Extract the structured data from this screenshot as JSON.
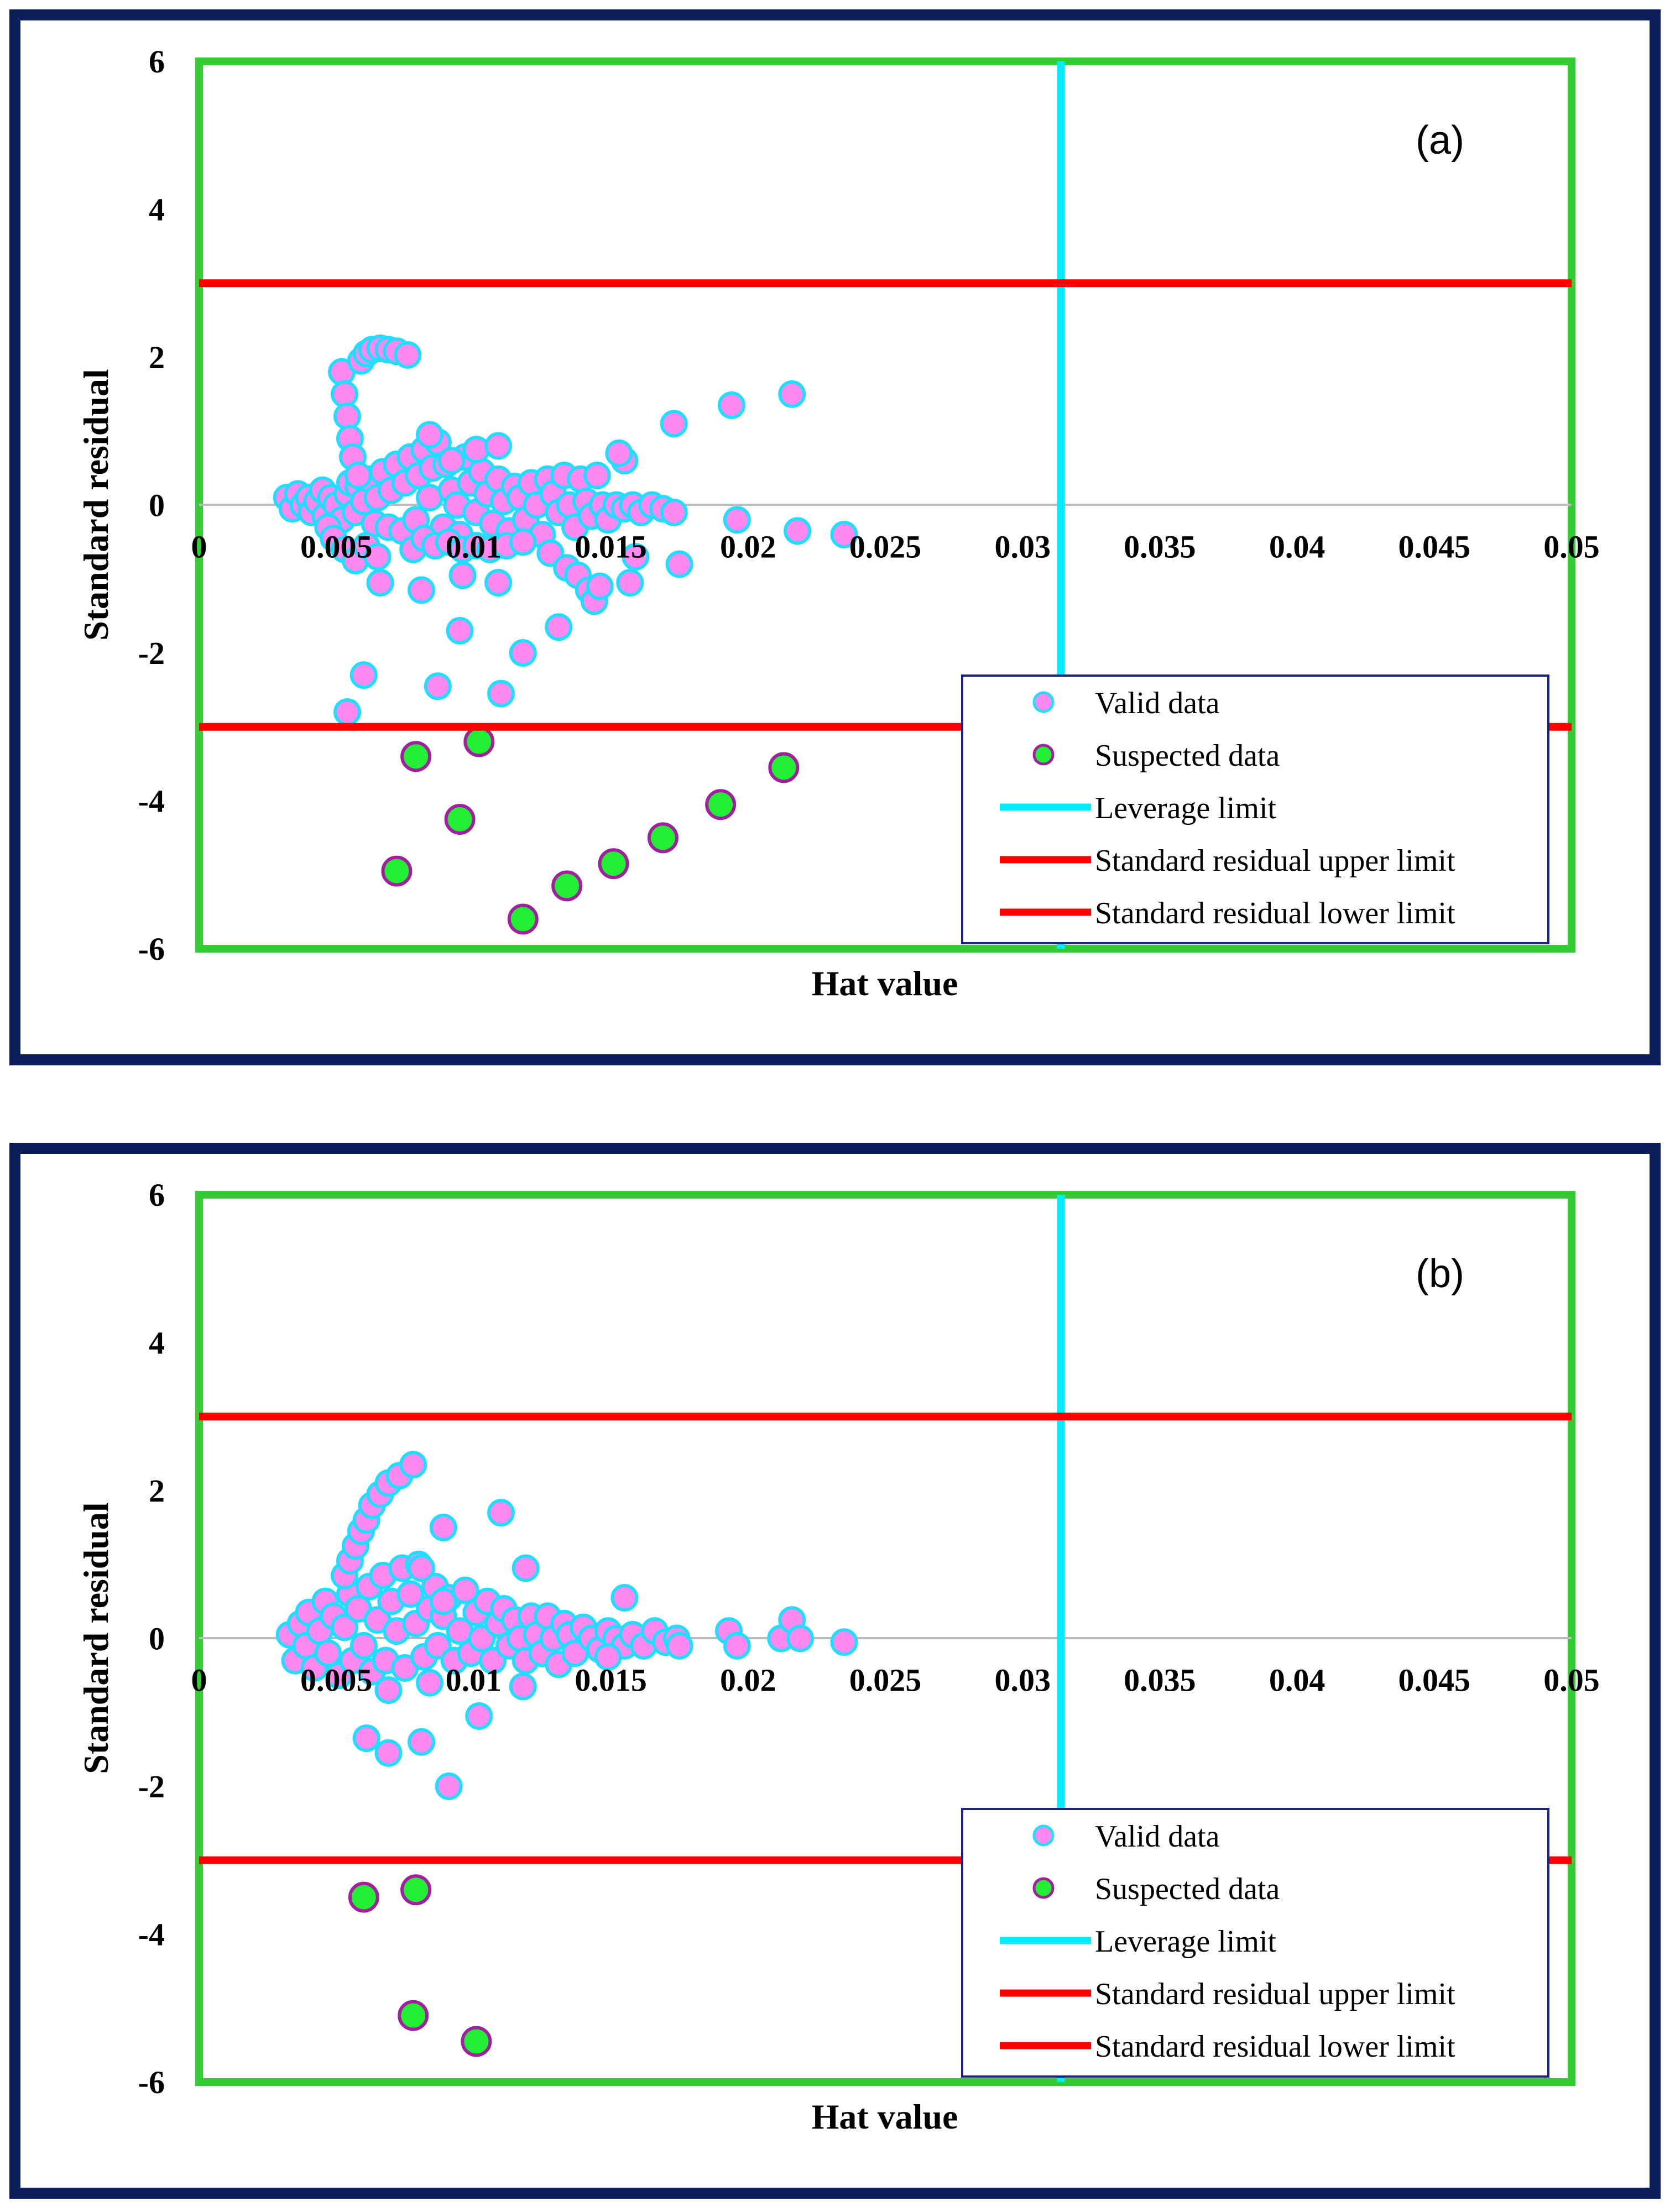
{
  "colors": {
    "frame": "#0b1d59",
    "plot_border": "#33cc33",
    "valid_fill": "#ff88f0",
    "valid_edge": "#22ddff",
    "suspect_fill": "#22ee33",
    "suspect_edge": "#a020a0",
    "leverage": "#00eeff",
    "residual_limit": "#ff0000",
    "zero_line": "#bbbbbb"
  },
  "legend": {
    "valid": "Valid data",
    "suspected": "Suspected data",
    "leverage": "Leverage limit",
    "upper": "Standard residual upper limit",
    "lower": "Standard residual lower limit"
  },
  "chart_data": [
    {
      "type": "scatter",
      "panel_label": "(a)",
      "xlabel": "Hat value",
      "ylabel": "Standard residual",
      "xlim": [
        0,
        0.05
      ],
      "ylim": [
        -6,
        6
      ],
      "xticks": [
        "0",
        "0.005",
        "0.01",
        "0.015",
        "0.02",
        "0.025",
        "0.03",
        "0.035",
        "0.04",
        "0.045",
        "0.05"
      ],
      "yticks": [
        "6",
        "4",
        "2",
        "0",
        "-2",
        "-4",
        "-6"
      ],
      "leverage_limit": 0.0314,
      "upper_limit": 3,
      "lower_limit": -3,
      "series": [
        {
          "name": "Valid data",
          "points": [
            [
              0.0032,
              0.1
            ],
            [
              0.0034,
              -0.05
            ],
            [
              0.0036,
              0.15
            ],
            [
              0.0038,
              0.0
            ],
            [
              0.004,
              0.1
            ],
            [
              0.0041,
              -0.1
            ],
            [
              0.0043,
              0.05
            ],
            [
              0.0045,
              0.2
            ],
            [
              0.0046,
              -0.15
            ],
            [
              0.0048,
              0.1
            ],
            [
              0.005,
              0.0
            ],
            [
              0.0052,
              -0.2
            ],
            [
              0.0054,
              0.15
            ],
            [
              0.0055,
              0.3
            ],
            [
              0.0057,
              -0.1
            ],
            [
              0.0058,
              0.25
            ],
            [
              0.006,
              0.05
            ],
            [
              0.0062,
              0.35
            ],
            [
              0.0064,
              -0.25
            ],
            [
              0.0065,
              0.1
            ],
            [
              0.0067,
              0.45
            ],
            [
              0.0069,
              -0.3
            ],
            [
              0.007,
              0.2
            ],
            [
              0.0072,
              0.55
            ],
            [
              0.0074,
              -0.35
            ],
            [
              0.0075,
              0.3
            ],
            [
              0.0077,
              0.65
            ],
            [
              0.0079,
              -0.2
            ],
            [
              0.008,
              0.4
            ],
            [
              0.0082,
              0.75
            ],
            [
              0.0084,
              0.1
            ],
            [
              0.0085,
              0.5
            ],
            [
              0.0087,
              0.85
            ],
            [
              0.0089,
              -0.3
            ],
            [
              0.009,
              0.55
            ],
            [
              0.0092,
              0.2
            ],
            [
              0.0094,
              0.0
            ],
            [
              0.0095,
              -0.4
            ],
            [
              0.0097,
              0.65
            ],
            [
              0.0099,
              0.3
            ],
            [
              0.0101,
              -0.1
            ],
            [
              0.0103,
              0.45
            ],
            [
              0.0105,
              0.15
            ],
            [
              0.0107,
              -0.25
            ],
            [
              0.0109,
              0.35
            ],
            [
              0.0111,
              0.05
            ],
            [
              0.0113,
              -0.35
            ],
            [
              0.0115,
              0.25
            ],
            [
              0.0117,
              0.1
            ],
            [
              0.0119,
              -0.2
            ],
            [
              0.0121,
              0.3
            ],
            [
              0.0123,
              0.0
            ],
            [
              0.0125,
              -0.4
            ],
            [
              0.0127,
              0.35
            ],
            [
              0.0129,
              0.15
            ],
            [
              0.0131,
              -0.1
            ],
            [
              0.0133,
              0.4
            ],
            [
              0.0135,
              0.0
            ],
            [
              0.0137,
              -0.3
            ],
            [
              0.0139,
              0.35
            ],
            [
              0.0141,
              0.05
            ],
            [
              0.0143,
              -0.15
            ],
            [
              0.0145,
              0.4
            ],
            [
              0.0147,
              0.0
            ],
            [
              0.0149,
              -0.2
            ],
            [
              0.0152,
              0.0
            ],
            [
              0.0155,
              -0.05
            ],
            [
              0.0158,
              0.0
            ],
            [
              0.0161,
              -0.1
            ],
            [
              0.0165,
              0.0
            ],
            [
              0.0169,
              -0.05
            ],
            [
              0.0173,
              -0.1
            ],
            [
              0.0052,
              1.8
            ],
            [
              0.0053,
              1.5
            ],
            [
              0.0054,
              1.2
            ],
            [
              0.0055,
              0.9
            ],
            [
              0.0056,
              0.65
            ],
            [
              0.0058,
              0.4
            ],
            [
              0.0059,
              1.95
            ],
            [
              0.0061,
              2.05
            ],
            [
              0.0063,
              2.1
            ],
            [
              0.0066,
              2.12
            ],
            [
              0.0069,
              2.1
            ],
            [
              0.0072,
              2.08
            ],
            [
              0.0076,
              2.03
            ],
            [
              0.0047,
              -0.3
            ],
            [
              0.0049,
              -0.45
            ],
            [
              0.0053,
              -0.6
            ],
            [
              0.0057,
              -0.75
            ],
            [
              0.0061,
              -0.55
            ],
            [
              0.0065,
              -0.7
            ],
            [
              0.0078,
              -0.6
            ],
            [
              0.0082,
              -0.45
            ],
            [
              0.0086,
              -0.55
            ],
            [
              0.0091,
              -0.5
            ],
            [
              0.0096,
              -0.6
            ],
            [
              0.0101,
              -0.55
            ],
            [
              0.0106,
              -0.6
            ],
            [
              0.0112,
              -0.55
            ],
            [
              0.0118,
              -0.5
            ],
            [
              0.0128,
              -0.65
            ],
            [
              0.0134,
              -0.85
            ],
            [
              0.0138,
              -0.95
            ],
            [
              0.0142,
              -1.15
            ],
            [
              0.0144,
              -1.3
            ],
            [
              0.0146,
              -1.1
            ],
            [
              0.0159,
              -0.7
            ],
            [
              0.0175,
              -0.8
            ],
            [
              0.0157,
              -1.05
            ],
            [
              0.0066,
              -1.05
            ],
            [
              0.0081,
              -1.15
            ],
            [
              0.0096,
              -0.95
            ],
            [
              0.0109,
              -1.05
            ],
            [
              0.0155,
              0.6
            ],
            [
              0.0153,
              0.7
            ],
            [
              0.0173,
              1.1
            ],
            [
              0.0194,
              1.35
            ],
            [
              0.0216,
              1.5
            ],
            [
              0.0196,
              -0.2
            ],
            [
              0.0218,
              -0.35
            ],
            [
              0.0235,
              -0.4
            ],
            [
              0.0095,
              -1.7
            ],
            [
              0.0118,
              -2.0
            ],
            [
              0.0131,
              -1.65
            ],
            [
              0.006,
              -2.3
            ],
            [
              0.0087,
              -2.45
            ],
            [
              0.011,
              -2.55
            ],
            [
              0.0054,
              -2.8
            ],
            [
              0.0084,
              0.95
            ],
            [
              0.0092,
              0.6
            ],
            [
              0.0101,
              0.75
            ],
            [
              0.0109,
              0.8
            ]
          ]
        },
        {
          "name": "Suspected data",
          "points": [
            [
              0.0079,
              -3.4
            ],
            [
              0.0102,
              -3.2
            ],
            [
              0.0095,
              -4.25
            ],
            [
              0.0072,
              -4.95
            ],
            [
              0.0118,
              -5.6
            ],
            [
              0.0134,
              -5.15
            ],
            [
              0.0151,
              -4.85
            ],
            [
              0.0169,
              -4.5
            ],
            [
              0.019,
              -4.05
            ],
            [
              0.0213,
              -3.55
            ]
          ]
        }
      ]
    },
    {
      "type": "scatter",
      "panel_label": "(b)",
      "xlabel": "Hat value",
      "ylabel": "Standard residual",
      "xlim": [
        0,
        0.05
      ],
      "ylim": [
        -6,
        6
      ],
      "xticks": [
        "0",
        "0.005",
        "0.01",
        "0.015",
        "0.02",
        "0.025",
        "0.03",
        "0.035",
        "0.04",
        "0.045",
        "0.05"
      ],
      "yticks": [
        "6",
        "4",
        "2",
        "0",
        "-2",
        "-4",
        "-6"
      ],
      "leverage_limit": 0.0314,
      "upper_limit": 3,
      "lower_limit": -3,
      "series": [
        {
          "name": "Valid data",
          "points": [
            [
              0.0033,
              0.05
            ],
            [
              0.0035,
              -0.3
            ],
            [
              0.0037,
              0.2
            ],
            [
              0.0039,
              -0.1
            ],
            [
              0.004,
              0.35
            ],
            [
              0.0042,
              -0.4
            ],
            [
              0.0044,
              0.1
            ],
            [
              0.0046,
              0.5
            ],
            [
              0.0047,
              -0.2
            ],
            [
              0.0049,
              0.3
            ],
            [
              0.0051,
              -0.5
            ],
            [
              0.0053,
              0.15
            ],
            [
              0.0055,
              0.6
            ],
            [
              0.0056,
              -0.3
            ],
            [
              0.0058,
              0.4
            ],
            [
              0.006,
              -0.1
            ],
            [
              0.0062,
              0.7
            ],
            [
              0.0063,
              -0.45
            ],
            [
              0.0065,
              0.25
            ],
            [
              0.0067,
              0.85
            ],
            [
              0.0068,
              -0.3
            ],
            [
              0.007,
              0.5
            ],
            [
              0.0072,
              0.1
            ],
            [
              0.0074,
              0.95
            ],
            [
              0.0075,
              -0.4
            ],
            [
              0.0077,
              0.6
            ],
            [
              0.0079,
              0.2
            ],
            [
              0.008,
              1.0
            ],
            [
              0.0082,
              -0.25
            ],
            [
              0.0084,
              0.4
            ],
            [
              0.0086,
              0.7
            ],
            [
              0.0087,
              -0.1
            ],
            [
              0.0089,
              0.3
            ],
            [
              0.0091,
              0.55
            ],
            [
              0.0093,
              -0.3
            ],
            [
              0.0095,
              0.1
            ],
            [
              0.0097,
              0.65
            ],
            [
              0.0099,
              -0.2
            ],
            [
              0.0101,
              0.35
            ],
            [
              0.0103,
              0.0
            ],
            [
              0.0105,
              0.5
            ],
            [
              0.0107,
              -0.3
            ],
            [
              0.0109,
              0.2
            ],
            [
              0.0111,
              0.4
            ],
            [
              0.0113,
              -0.1
            ],
            [
              0.0115,
              0.25
            ],
            [
              0.0117,
              0.0
            ],
            [
              0.0119,
              -0.3
            ],
            [
              0.0121,
              0.3
            ],
            [
              0.0123,
              0.05
            ],
            [
              0.0125,
              -0.2
            ],
            [
              0.0127,
              0.3
            ],
            [
              0.0129,
              0.0
            ],
            [
              0.0131,
              -0.35
            ],
            [
              0.0133,
              0.2
            ],
            [
              0.0135,
              0.05
            ],
            [
              0.0137,
              -0.2
            ],
            [
              0.014,
              0.15
            ],
            [
              0.0143,
              0.0
            ],
            [
              0.0146,
              -0.15
            ],
            [
              0.0149,
              0.1
            ],
            [
              0.0152,
              0.0
            ],
            [
              0.0155,
              -0.1
            ],
            [
              0.0158,
              0.05
            ],
            [
              0.0162,
              -0.1
            ],
            [
              0.0166,
              0.1
            ],
            [
              0.017,
              -0.05
            ],
            [
              0.0174,
              0.0
            ],
            [
              0.0155,
              0.55
            ],
            [
              0.0053,
              0.85
            ],
            [
              0.0055,
              1.05
            ],
            [
              0.0057,
              1.25
            ],
            [
              0.0059,
              1.45
            ],
            [
              0.0061,
              1.6
            ],
            [
              0.0063,
              1.8
            ],
            [
              0.0066,
              1.95
            ],
            [
              0.0069,
              2.1
            ],
            [
              0.0073,
              2.2
            ],
            [
              0.0078,
              2.35
            ],
            [
              0.0089,
              1.5
            ],
            [
              0.011,
              1.7
            ],
            [
              0.0119,
              0.95
            ],
            [
              0.0089,
              0.5
            ],
            [
              0.0081,
              0.95
            ],
            [
              0.0061,
              -1.35
            ],
            [
              0.0069,
              -1.55
            ],
            [
              0.0081,
              -1.4
            ],
            [
              0.0102,
              -1.05
            ],
            [
              0.0091,
              -2.0
            ],
            [
              0.0069,
              -0.7
            ],
            [
              0.0084,
              -0.6
            ],
            [
              0.0118,
              -0.65
            ],
            [
              0.0149,
              -0.25
            ],
            [
              0.0193,
              0.1
            ],
            [
              0.0196,
              -0.1
            ],
            [
              0.0212,
              0.0
            ],
            [
              0.0216,
              0.25
            ],
            [
              0.0219,
              0.0
            ],
            [
              0.0235,
              -0.05
            ],
            [
              0.0175,
              -0.1
            ]
          ]
        },
        {
          "name": "Suspected data",
          "points": [
            [
              0.006,
              -3.5
            ],
            [
              0.0079,
              -3.4
            ],
            [
              0.0078,
              -5.1
            ],
            [
              0.0101,
              -5.45
            ]
          ]
        }
      ]
    }
  ]
}
